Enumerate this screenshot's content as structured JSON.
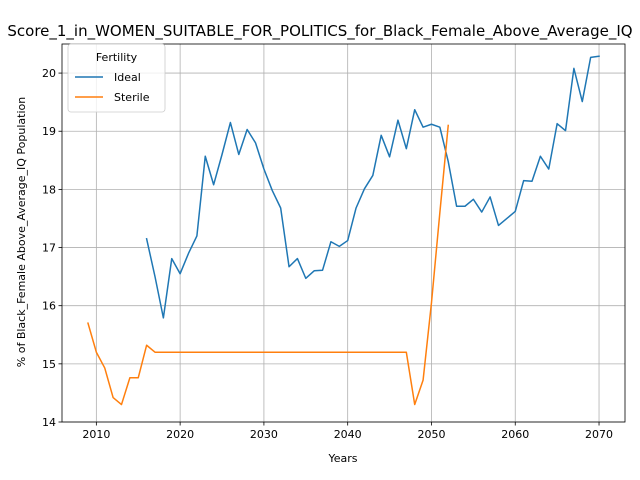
{
  "chart_data": {
    "type": "line",
    "title": "Score_1_in_WOMEN_SUITABLE_FOR_POLITICS_for_Black_Female_Above_Average_IQ",
    "xlabel": "Years",
    "ylabel": "% of Black_Female Above_Average_IQ Population",
    "xlim": [
      2005.9,
      2073.1
    ],
    "ylim": [
      14.0,
      20.5
    ],
    "x_ticks": [
      2010,
      2020,
      2030,
      2040,
      2050,
      2060,
      2070
    ],
    "y_ticks": [
      14,
      15,
      16,
      17,
      18,
      19,
      20
    ],
    "grid": true,
    "legend": {
      "title": "Fertility",
      "placement": "top-left"
    },
    "series": [
      {
        "name": "Ideal",
        "color": "#1f77b4",
        "x": [
          2016,
          2017,
          2018,
          2019,
          2020,
          2021,
          2022,
          2023,
          2024,
          2025,
          2026,
          2027,
          2028,
          2029,
          2030,
          2031,
          2032,
          2033,
          2034,
          2035,
          2036,
          2037,
          2038,
          2039,
          2040,
          2041,
          2042,
          2043,
          2044,
          2045,
          2046,
          2047,
          2048,
          2049,
          2050,
          2051,
          2052,
          2053,
          2054,
          2055,
          2056,
          2057,
          2058,
          2059,
          2060,
          2061,
          2062,
          2063,
          2064,
          2065,
          2066,
          2067,
          2068,
          2069,
          2070
        ],
        "y": [
          17.15,
          16.5,
          15.79,
          16.81,
          16.55,
          16.9,
          17.2,
          18.57,
          18.08,
          18.6,
          19.15,
          18.6,
          19.03,
          18.8,
          18.35,
          17.98,
          17.68,
          16.67,
          16.81,
          16.47,
          16.6,
          16.61,
          17.1,
          17.02,
          17.12,
          17.68,
          18.01,
          18.24,
          18.93,
          18.56,
          19.19,
          18.7,
          19.37,
          19.07,
          19.12,
          19.07,
          18.48,
          17.71,
          17.71,
          17.83,
          17.61,
          17.87,
          17.38,
          17.5,
          17.62,
          18.15,
          18.14,
          18.57,
          18.35,
          19.13,
          19.01,
          20.08,
          19.51,
          20.27,
          20.29
        ]
      },
      {
        "name": "Sterile",
        "color": "#ff7f0e",
        "x": [
          2009,
          2010,
          2011,
          2012,
          2013,
          2014,
          2015,
          2016,
          2017,
          2018,
          2019,
          2020,
          2021,
          2022,
          2023,
          2024,
          2025,
          2026,
          2027,
          2028,
          2029,
          2030,
          2031,
          2032,
          2033,
          2034,
          2035,
          2036,
          2037,
          2038,
          2039,
          2040,
          2041,
          2042,
          2043,
          2044,
          2045,
          2046,
          2047,
          2048,
          2049,
          2050,
          2051,
          2052
        ],
        "y": [
          15.7,
          15.2,
          14.93,
          14.42,
          14.3,
          14.76,
          14.76,
          15.32,
          15.2,
          15.2,
          15.2,
          15.2,
          15.2,
          15.2,
          15.2,
          15.2,
          15.2,
          15.2,
          15.2,
          15.2,
          15.2,
          15.2,
          15.2,
          15.2,
          15.2,
          15.2,
          15.2,
          15.2,
          15.2,
          15.2,
          15.2,
          15.2,
          15.2,
          15.2,
          15.2,
          15.2,
          15.2,
          15.2,
          15.2,
          14.3,
          14.72,
          16.05,
          17.6,
          19.1
        ]
      }
    ]
  }
}
